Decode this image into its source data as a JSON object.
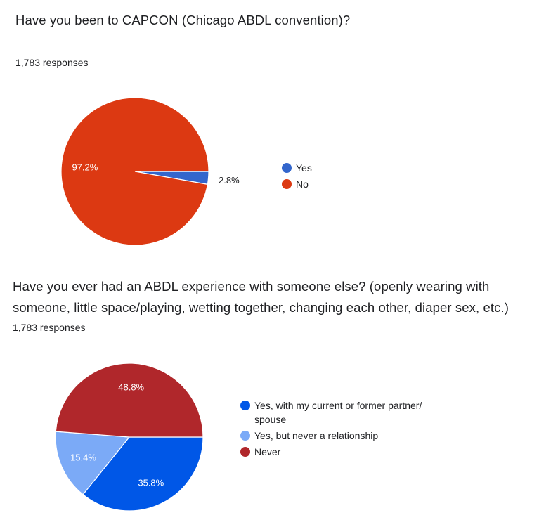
{
  "charts": [
    {
      "question": "Have you been to CAPCON (Chicago ABDL convention)?",
      "responses": "1,783 responses"
    },
    {
      "question": "Have you ever had an ABDL experience with someone else? (openly wearing with someone, little space/playing, wetting together, changing each other, diaper sex, etc.)",
      "responses": "1,783 responses"
    }
  ],
  "chart_data": [
    {
      "type": "pie",
      "title": "Have you been to CAPCON (Chicago ABDL convention)?",
      "categories": [
        "Yes",
        "No"
      ],
      "values": [
        2.8,
        97.2
      ],
      "labels": [
        "2.8%",
        "97.2%"
      ],
      "colors": [
        "#3366cc",
        "#dc3912"
      ],
      "legend": "right"
    },
    {
      "type": "pie",
      "title": "Have you ever had an ABDL experience with someone else? (openly wearing with someone, little space/playing, wetting together, changing each other, diaper sex, etc.)",
      "categories": [
        "Yes, with my current or former partner/ spouse",
        "Yes, but never a relationship",
        "Never"
      ],
      "values": [
        35.8,
        15.4,
        48.8
      ],
      "labels": [
        "35.8%",
        "15.4%",
        "48.8%"
      ],
      "colors": [
        "#0057e7",
        "#7baaf7",
        "#b0272b"
      ],
      "legend": "right"
    }
  ]
}
